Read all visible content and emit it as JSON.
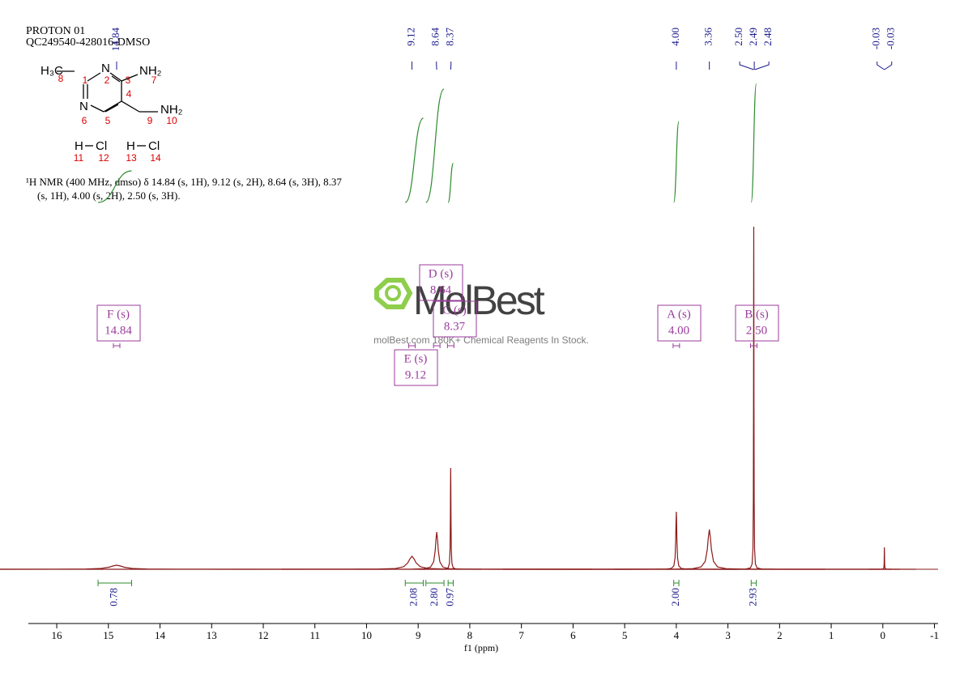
{
  "chart_data": {
    "type": "nmr",
    "title": "PROTON 01",
    "subtitle": "QC249540-428016-DMSO",
    "xlabel": "f1 (ppm)",
    "xlim": [
      16.55,
      -1.07
    ],
    "xticks": [
      16,
      15,
      14,
      13,
      12,
      11,
      10,
      9,
      8,
      7,
      6,
      5,
      4,
      3,
      2,
      1,
      0,
      -1
    ],
    "ylim": [
      0,
      440
    ],
    "color": "#8b1a1a",
    "integral_color": "#2e8b2e",
    "label_color": "#1a1a8c",
    "multiplet_color": "#9b3b9b",
    "signals": [
      {
        "ppm": 14.84,
        "height": 5,
        "width": 0.15
      },
      {
        "ppm": 9.12,
        "height": 16,
        "width": 0.08
      },
      {
        "ppm": 8.64,
        "height": 46,
        "width": 0.03
      },
      {
        "ppm": 8.37,
        "height": 125,
        "width": 0.006
      },
      {
        "ppm": 4.0,
        "height": 71,
        "width": 0.012
      },
      {
        "ppm": 3.36,
        "height": 49,
        "width": 0.04
      },
      {
        "ppm": 2.5,
        "height": 423,
        "width": 0.004
      },
      {
        "ppm": -0.03,
        "height": 27,
        "width": 0.003
      }
    ],
    "peak_labels": [
      {
        "value": 14.84,
        "label": "14.84"
      },
      {
        "value": 9.12,
        "label": "9.12"
      },
      {
        "value": 8.64,
        "label": "8.64"
      },
      {
        "value": 8.37,
        "label": "8.37"
      },
      {
        "value": 4.0,
        "label": "4.00"
      },
      {
        "value": 3.36,
        "label": "3.36"
      },
      {
        "value": 2.5,
        "label": "2.50"
      },
      {
        "value": 2.49,
        "label": "2.49"
      },
      {
        "value": 2.48,
        "label": "2.48"
      },
      {
        "value": -0.03,
        "label": "-0.03"
      },
      {
        "value": -0.03,
        "label": "-0.03"
      }
    ],
    "integrals": [
      {
        "from": 15.2,
        "to": 14.55,
        "value": 0.78,
        "label": "0.78"
      },
      {
        "from": 9.25,
        "to": 8.9,
        "value": 2.08,
        "label": "2.08"
      },
      {
        "from": 8.85,
        "to": 8.5,
        "value": 2.8,
        "label": "2.80"
      },
      {
        "from": 8.42,
        "to": 8.32,
        "value": 0.97,
        "label": "0.97"
      },
      {
        "from": 4.05,
        "to": 3.95,
        "value": 2.0,
        "label": "2.00"
      },
      {
        "from": 2.55,
        "to": 2.45,
        "value": 2.93,
        "label": "2.93"
      }
    ],
    "multiplets": [
      {
        "name": "F (s)",
        "value": 14.84,
        "label": "14.84"
      },
      {
        "name": "E (s)",
        "value": 9.12,
        "label": "9.12"
      },
      {
        "name": "D (s)",
        "value": 8.64,
        "label": "8.64"
      },
      {
        "name": "C (s)",
        "value": 8.37,
        "label": "8.37"
      },
      {
        "name": "A (s)",
        "value": 4.0,
        "label": "4.00"
      },
      {
        "name": "B (s)",
        "value": 2.5,
        "label": "2.50"
      }
    ],
    "nmr_text": [
      "¹H NMR (400 MHz, dmso) δ 14.84 (s, 1H), 9.12 (s, 2H), 8.64 (s, 3H), 8.37",
      "(s, 1H), 4.00 (s, 2H), 2.50 (s, 3H)."
    ],
    "structure": {
      "atoms": [
        "H₃C",
        "N",
        "NH₂",
        "N",
        "NH₂",
        "H",
        "Cl",
        "H",
        "Cl"
      ],
      "numbers": [
        8,
        1,
        2,
        3,
        7,
        4,
        6,
        5,
        9,
        10,
        11,
        12,
        13,
        14
      ]
    },
    "watermark": {
      "brand": "MolBest",
      "text": "molBest.com 180K+ Chemical Reagents In Stock."
    }
  }
}
